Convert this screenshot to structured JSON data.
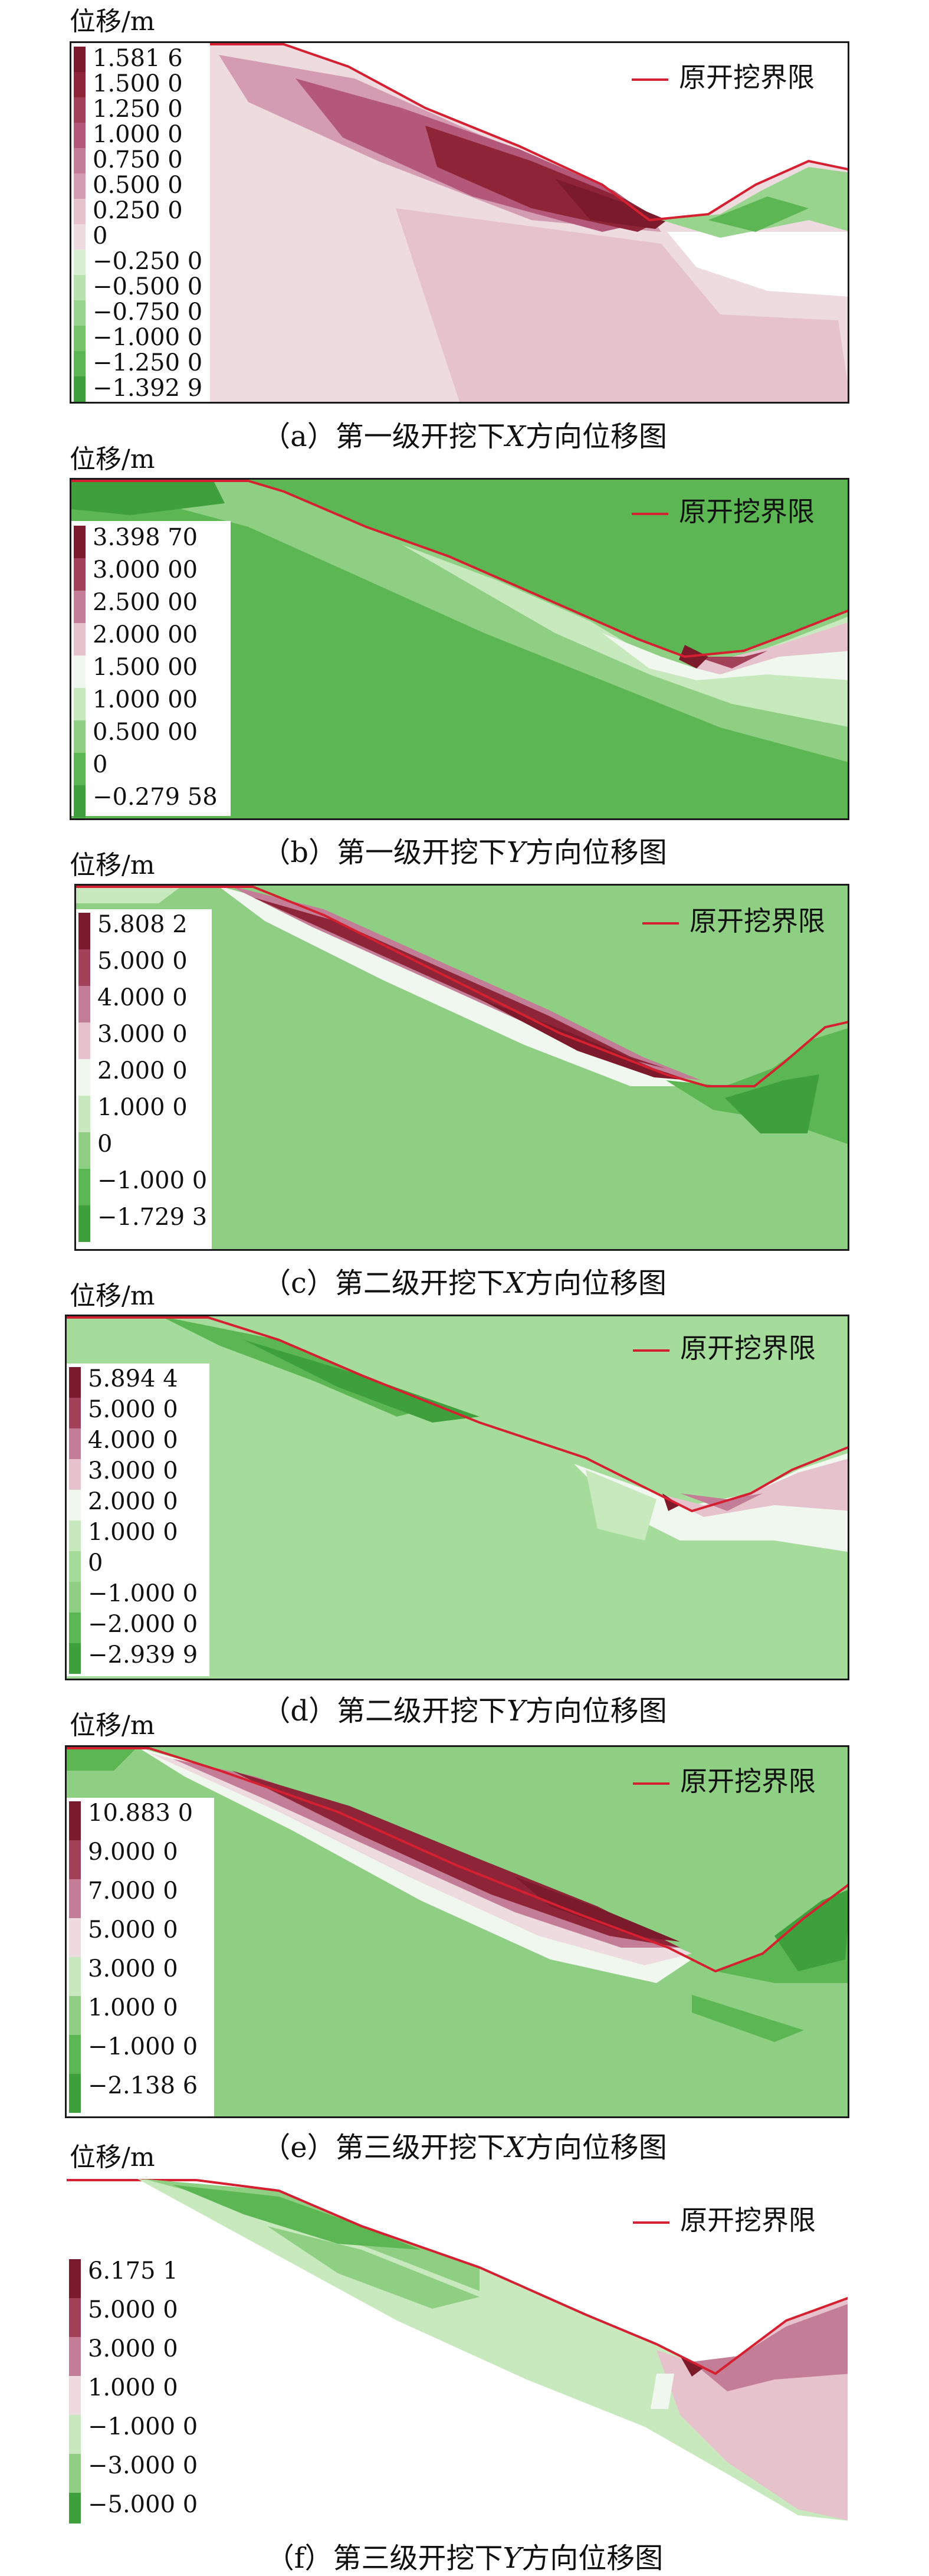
{
  "unit_label": "位移/m",
  "boundary_label": "原开挖界限",
  "colors": {
    "boundary": "#d42030",
    "frame": "#1a1a1a"
  },
  "panels": [
    {
      "id": "a",
      "caption_prefix": "（a）第一级开挖下",
      "caption_axis": "X",
      "caption_suffix": "方向位移图",
      "legend": [
        "1.581 6",
        "1.500 0",
        "1.250 0",
        "1.000 0",
        "0.750 0",
        "0.500 0",
        "0.250 0",
        "0",
        "−0.250 0",
        "−0.500 0",
        "−0.750 0",
        "−1.000 0",
        "−1.250 0",
        "−1.392 9"
      ],
      "legend_colors": [
        "#7a1a2a",
        "#8e2438",
        "#a3405a",
        "#b4587a",
        "#c47d96",
        "#d49cb0",
        "#e6c2cc",
        "#eddbe0",
        "#d8efd3",
        "#b7e2ae",
        "#98d48d",
        "#78c46c",
        "#5cb653",
        "#3f9f3c"
      ]
    },
    {
      "id": "b",
      "caption_prefix": "（b）第一级开挖下",
      "caption_axis": "Y",
      "caption_suffix": "方向位移图",
      "legend": [
        "3.398 70",
        "3.000 00",
        "2.500 00",
        "2.000 00",
        "1.500 00",
        "1.000 00",
        "0.500 00",
        "0",
        "−0.279 58"
      ],
      "legend_colors": [
        "#7a1a2a",
        "#a3405a",
        "#c47d96",
        "#e6c2cc",
        "#f0f7ee",
        "#c7e9bd",
        "#8fcf84",
        "#5cb653",
        "#3f9f3c"
      ]
    },
    {
      "id": "c",
      "caption_prefix": "（c）第二级开挖下",
      "caption_axis": "X",
      "caption_suffix": "方向位移图",
      "legend": [
        "5.808 2",
        "5.000 0",
        "4.000 0",
        "3.000 0",
        "2.000 0",
        "1.000 0",
        "0",
        "−1.000 0",
        "−1.729 3"
      ],
      "legend_colors": [
        "#7a1a2a",
        "#a3405a",
        "#c47d96",
        "#e6c2cc",
        "#f0f7ee",
        "#c7e9bd",
        "#8fcf84",
        "#5cb653",
        "#3f9f3c"
      ]
    },
    {
      "id": "d",
      "caption_prefix": "（d）第二级开挖下",
      "caption_axis": "Y",
      "caption_suffix": "方向位移图",
      "legend": [
        "5.894 4",
        "5.000 0",
        "4.000 0",
        "3.000 0",
        "2.000 0",
        "1.000 0",
        "0",
        "−1.000 0",
        "−2.000 0",
        "−2.939 9"
      ],
      "legend_colors": [
        "#7a1a2a",
        "#a3405a",
        "#c47d96",
        "#e6c2cc",
        "#f0f7ee",
        "#c7e9bd",
        "#a6dc9b",
        "#8fcf84",
        "#5cb653",
        "#3f9f3c"
      ]
    },
    {
      "id": "e",
      "caption_prefix": "（e）第三级开挖下",
      "caption_axis": "X",
      "caption_suffix": "方向位移图",
      "legend": [
        "10.883 0",
        "9.000 0",
        "7.000 0",
        "5.000 0",
        "3.000 0",
        "1.000 0",
        "−1.000 0",
        "−2.138 6"
      ],
      "legend_colors": [
        "#7a1a2a",
        "#a3405a",
        "#c47d96",
        "#eddbe0",
        "#c7e9bd",
        "#8fcf84",
        "#5cb653",
        "#3f9f3c"
      ]
    },
    {
      "id": "f",
      "caption_prefix": "（f）第三级开挖下",
      "caption_axis": "Y",
      "caption_suffix": "方向位移图",
      "legend": [
        "6.175 1",
        "5.000 0",
        "3.000 0",
        "1.000 0",
        "−1.000 0",
        "−3.000 0",
        "−5.000 0"
      ],
      "legend_colors": [
        "#7a1a2a",
        "#a3405a",
        "#c47d96",
        "#eddbe0",
        "#c7e9bd",
        "#8fcf84",
        "#3f9f3c"
      ]
    }
  ]
}
